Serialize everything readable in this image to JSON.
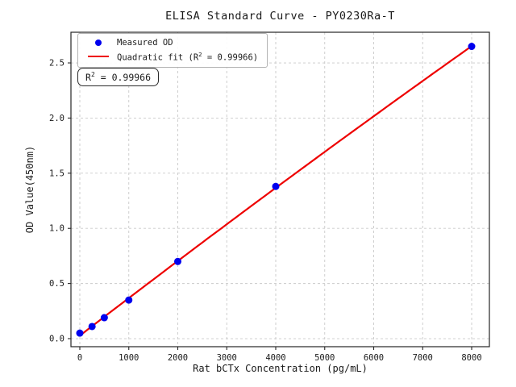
{
  "chart_data": {
    "type": "scatter",
    "title": "ELISA Standard Curve - PY0230Ra-T",
    "xlabel": "Rat bCTx Concentration (pg/mL)",
    "ylabel": "OD Value(450nm)",
    "legend_position": "upper left",
    "legend": [
      "Measured OD",
      "Quadratic fit (R² = 0.99966)"
    ],
    "annotation": "R² = 0.99966",
    "r_squared": 0.99966,
    "grid": true,
    "grid_style": "dashed",
    "xlim": [
      -181,
      8362
    ],
    "ylim": [
      -0.073,
      2.778
    ],
    "x_ticks": [
      0,
      1000,
      2000,
      3000,
      4000,
      5000,
      6000,
      7000,
      8000
    ],
    "x_tick_labels": [
      "0",
      "1000",
      "2000",
      "3000",
      "4000",
      "5000",
      "6000",
      "7000",
      "8000"
    ],
    "y_ticks": [
      0.0,
      0.5,
      1.0,
      1.5,
      2.0,
      2.5
    ],
    "y_tick_labels": [
      "0.0",
      "0.5",
      "1.0",
      "1.5",
      "2.0",
      "2.5"
    ],
    "series": [
      {
        "name": "Measured OD",
        "type": "scatter",
        "x": [
          0,
          250,
          500,
          1000,
          2000,
          4000,
          8000
        ],
        "y": [
          0.05,
          0.11,
          0.19,
          0.35,
          0.7,
          1.38,
          2.65
        ]
      },
      {
        "name": "Quadratic fit",
        "type": "line",
        "fit": "quadratic",
        "x_range": [
          0,
          8000
        ]
      }
    ],
    "colors": {
      "point": "#0000ee",
      "line": "#ee0000",
      "grid": "#c9c9c9",
      "spine": "#262626",
      "text": "#1a1a1a",
      "background": "#ffffff"
    }
  }
}
